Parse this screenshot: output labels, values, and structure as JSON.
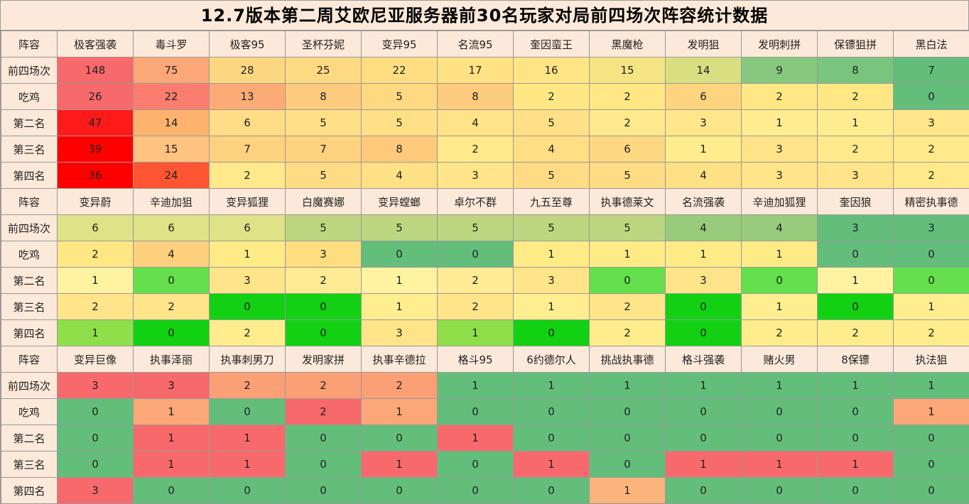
{
  "title": "12.7版本第二周艾欧尼亚服务器前30名玩家对局前四场次阵容统计数据",
  "row_labels": [
    "前四场次",
    "吃鸡",
    "第二名",
    "第三名",
    "第四名"
  ],
  "header_label": "阵容",
  "colors": {
    "label_bg": "#fde9d9",
    "title_bg": "#fde9d9",
    "grid": "#999999"
  },
  "blocks": [
    {
      "lineups": [
        "极客强袭",
        "毒斗罗",
        "极客95",
        "圣杯芬妮",
        "变异95",
        "名流95",
        "奎因蛮王",
        "黑魔枪",
        "发明狙",
        "发明刺拼",
        "保镖狙拼",
        "黑白法"
      ],
      "rows": [
        {
          "values": [
            "148",
            "75",
            "28",
            "25",
            "22",
            "17",
            "16",
            "15",
            "14",
            "9",
            "8",
            "7"
          ],
          "colors": [
            "#f8696b",
            "#fba777",
            "#fdd680",
            "#fdda81",
            "#fedd81",
            "#ffe283",
            "#ffe483",
            "#f5e483",
            "#d8df81",
            "#86c97e",
            "#7ac57d",
            "#63be7b"
          ]
        },
        {
          "values": [
            "26",
            "22",
            "13",
            "8",
            "5",
            "8",
            "2",
            "2",
            "6",
            "2",
            "2",
            "0"
          ],
          "colors": [
            "#f8696b",
            "#fa7d6f",
            "#fcab77",
            "#fdcb7e",
            "#fed981",
            "#fdcb7e",
            "#ffe884",
            "#ffe884",
            "#fed47f",
            "#ffe884",
            "#ffe884",
            "#63be7b"
          ]
        },
        {
          "values": [
            "47",
            "14",
            "6",
            "5",
            "5",
            "4",
            "5",
            "2",
            "3",
            "1",
            "1",
            "3"
          ],
          "colors": [
            "#ff1a1a",
            "#fdb26e",
            "#ffdc86",
            "#ffe086",
            "#ffe086",
            "#ffe388",
            "#ffe086",
            "#ffe98d",
            "#ffe68a",
            "#ffec8f",
            "#ffec8f",
            "#ffe68a"
          ]
        },
        {
          "values": [
            "39",
            "15",
            "7",
            "7",
            "8",
            "2",
            "4",
            "6",
            "1",
            "3",
            "2",
            "2"
          ],
          "colors": [
            "#ff0000",
            "#fec281",
            "#fed17e",
            "#fed17e",
            "#fec97a",
            "#ffe98b",
            "#ffde84",
            "#fed781",
            "#ffec8c",
            "#ffe389",
            "#ffe98b",
            "#ffe98b"
          ]
        },
        {
          "values": [
            "36",
            "24",
            "2",
            "5",
            "4",
            "3",
            "5",
            "5",
            "4",
            "3",
            "3",
            "2"
          ],
          "colors": [
            "#ff0000",
            "#ff5533",
            "#ffe98b",
            "#ffdc84",
            "#ffe085",
            "#ffe489",
            "#ffdc84",
            "#ffdc84",
            "#ffe085",
            "#ffe489",
            "#ffe489",
            "#ffe98b"
          ]
        }
      ]
    },
    {
      "lineups": [
        "变异蔚",
        "辛迪加狙",
        "变异狐狸",
        "白魔赛娜",
        "变异螳螂",
        "卓尔不群",
        "九五至尊",
        "执事德莱文",
        "名流强袭",
        "辛迪加狐狸",
        "奎因狼",
        "精密执事德"
      ],
      "rows": [
        {
          "values": [
            "6",
            "6",
            "6",
            "5",
            "5",
            "5",
            "5",
            "5",
            "4",
            "4",
            "3",
            "3"
          ],
          "colors": [
            "#dfe286",
            "#dfe286",
            "#dfe286",
            "#bcd77f",
            "#bcd77f",
            "#bcd77f",
            "#bcd77f",
            "#bcd77f",
            "#98cb7c",
            "#98cb7c",
            "#63be7b",
            "#63be7b"
          ]
        },
        {
          "values": [
            "2",
            "4",
            "1",
            "3",
            "0",
            "0",
            "1",
            "1",
            "1",
            "1",
            "0",
            "0"
          ],
          "colors": [
            "#ffe884",
            "#fed07e",
            "#ffeb86",
            "#fedd81",
            "#63be7b",
            "#63be7b",
            "#ffeb86",
            "#ffeb86",
            "#ffeb86",
            "#ffeb86",
            "#63be7b",
            "#63be7b"
          ]
        },
        {
          "values": [
            "1",
            "0",
            "3",
            "2",
            "1",
            "2",
            "3",
            "0",
            "3",
            "0",
            "1",
            "0"
          ],
          "colors": [
            "#fff2a0",
            "#63e04b",
            "#ffe48a",
            "#ffeb94",
            "#fff2a0",
            "#ffeb94",
            "#ffe48a",
            "#63e04b",
            "#ffe48a",
            "#63e04b",
            "#fff2a0",
            "#63e04b"
          ]
        },
        {
          "values": [
            "2",
            "2",
            "0",
            "0",
            "1",
            "2",
            "1",
            "2",
            "0",
            "1",
            "0",
            "1"
          ],
          "colors": [
            "#ffe48a",
            "#ffe48a",
            "#12d112",
            "#12d112",
            "#ffee90",
            "#ffe48a",
            "#ffee90",
            "#ffe48a",
            "#12d112",
            "#ffee90",
            "#12d112",
            "#ffee90"
          ]
        },
        {
          "values": [
            "1",
            "0",
            "2",
            "0",
            "3",
            "1",
            "0",
            "2",
            "0",
            "2",
            "2",
            "2"
          ],
          "colors": [
            "#8fdf4b",
            "#12d112",
            "#ffec8c",
            "#12d112",
            "#ffe48a",
            "#8fdf4b",
            "#12d112",
            "#ffec8c",
            "#12d112",
            "#ffec8c",
            "#ffec8c",
            "#ffec8c"
          ]
        }
      ]
    },
    {
      "lineups": [
        "变异巨像",
        "执事泽丽",
        "执事刺男刀",
        "发明家拼",
        "执事辛德拉",
        "格斗95",
        "6约德尔人",
        "挑战执事德",
        "格斗强袭",
        "赌火男",
        "8保镖",
        "执法狙"
      ],
      "rows": [
        {
          "values": [
            "3",
            "3",
            "2",
            "2",
            "2",
            "1",
            "1",
            "1",
            "1",
            "1",
            "1",
            "1"
          ],
          "colors": [
            "#f8696b",
            "#f8696b",
            "#fb9f75",
            "#fb9f75",
            "#fb9f75",
            "#63be7b",
            "#63be7b",
            "#63be7b",
            "#63be7b",
            "#63be7b",
            "#63be7b",
            "#63be7b"
          ]
        },
        {
          "values": [
            "0",
            "1",
            "0",
            "2",
            "1",
            "0",
            "0",
            "0",
            "0",
            "0",
            "0",
            "1"
          ],
          "colors": [
            "#63be7b",
            "#fba777",
            "#63be7b",
            "#f8696b",
            "#fba777",
            "#63be7b",
            "#63be7b",
            "#63be7b",
            "#63be7b",
            "#63be7b",
            "#63be7b",
            "#fba777"
          ]
        },
        {
          "values": [
            "0",
            "1",
            "1",
            "0",
            "0",
            "1",
            "0",
            "0",
            "0",
            "0",
            "0",
            "0"
          ],
          "colors": [
            "#63be7b",
            "#f8696b",
            "#f8696b",
            "#63be7b",
            "#63be7b",
            "#f8696b",
            "#63be7b",
            "#63be7b",
            "#63be7b",
            "#63be7b",
            "#63be7b",
            "#63be7b"
          ]
        },
        {
          "values": [
            "0",
            "1",
            "1",
            "0",
            "1",
            "0",
            "1",
            "0",
            "1",
            "1",
            "1",
            "0"
          ],
          "colors": [
            "#63be7b",
            "#f8696b",
            "#f8696b",
            "#63be7b",
            "#f8696b",
            "#63be7b",
            "#f8696b",
            "#63be7b",
            "#f8696b",
            "#f8696b",
            "#f8696b",
            "#63be7b"
          ]
        },
        {
          "values": [
            "3",
            "0",
            "0",
            "0",
            "0",
            "0",
            "0",
            "1",
            "0",
            "0",
            "0",
            "0"
          ],
          "colors": [
            "#f8696b",
            "#63be7b",
            "#63be7b",
            "#63be7b",
            "#63be7b",
            "#63be7b",
            "#63be7b",
            "#fbb479",
            "#63be7b",
            "#63be7b",
            "#63be7b",
            "#63be7b"
          ]
        }
      ]
    }
  ]
}
